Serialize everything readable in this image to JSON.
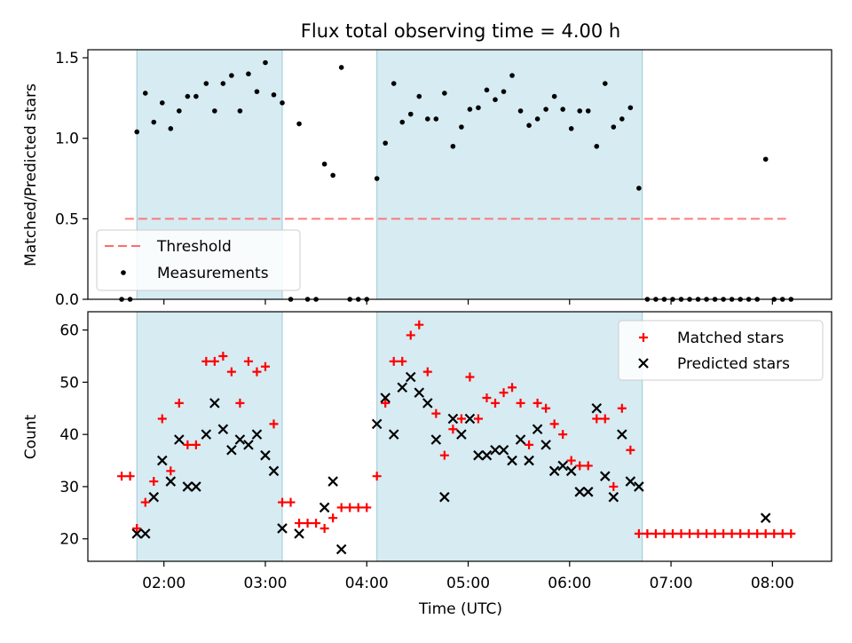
{
  "chart_data": [
    {
      "type": "scatter",
      "title": "Flux total observing time = 4.00 h",
      "xlabel": "",
      "ylabel": "Matched/Predicted stars",
      "xlim": [
        "01:15",
        "08:35"
      ],
      "ylim": [
        0,
        1.55
      ],
      "yticks": [
        "0.0",
        "0.5",
        "1.0",
        "1.5"
      ],
      "shaded_spans": [
        [
          "01:44",
          "03:10"
        ],
        [
          "04:06",
          "06:43"
        ]
      ],
      "threshold": {
        "name": "Threshold",
        "value": 0.5,
        "x": [
          "01:37",
          "08:08"
        ],
        "color": "#ff6b6b"
      },
      "series": [
        {
          "name": "Measurements",
          "marker": "dot",
          "color": "#000000",
          "points": [
            [
              "01:35",
              0.0
            ],
            [
              "01:40",
              0.0
            ],
            [
              "01:44",
              1.04
            ],
            [
              "01:49",
              1.28
            ],
            [
              "01:54",
              1.1
            ],
            [
              "01:59",
              1.22
            ],
            [
              "02:04",
              1.06
            ],
            [
              "02:09",
              1.17
            ],
            [
              "02:14",
              1.26
            ],
            [
              "02:19",
              1.26
            ],
            [
              "02:25",
              1.34
            ],
            [
              "02:30",
              1.17
            ],
            [
              "02:35",
              1.34
            ],
            [
              "02:40",
              1.39
            ],
            [
              "02:45",
              1.17
            ],
            [
              "02:50",
              1.4
            ],
            [
              "02:55",
              1.29
            ],
            [
              "03:00",
              1.47
            ],
            [
              "03:05",
              1.27
            ],
            [
              "03:10",
              1.22
            ],
            [
              "03:15",
              0.0
            ],
            [
              "03:20",
              1.09
            ],
            [
              "03:25",
              0.0
            ],
            [
              "03:30",
              0.0
            ],
            [
              "03:35",
              0.84
            ],
            [
              "03:40",
              0.77
            ],
            [
              "03:45",
              1.44
            ],
            [
              "03:50",
              0.0
            ],
            [
              "03:55",
              0.0
            ],
            [
              "04:00",
              0.0
            ],
            [
              "04:06",
              0.75
            ],
            [
              "04:11",
              0.97
            ],
            [
              "04:16",
              1.34
            ],
            [
              "04:21",
              1.1
            ],
            [
              "04:26",
              1.15
            ],
            [
              "04:31",
              1.26
            ],
            [
              "04:36",
              1.12
            ],
            [
              "04:41",
              1.12
            ],
            [
              "04:46",
              1.28
            ],
            [
              "04:51",
              0.95
            ],
            [
              "04:56",
              1.07
            ],
            [
              "05:01",
              1.18
            ],
            [
              "05:06",
              1.19
            ],
            [
              "05:11",
              1.3
            ],
            [
              "05:16",
              1.24
            ],
            [
              "05:21",
              1.29
            ],
            [
              "05:26",
              1.39
            ],
            [
              "05:31",
              1.17
            ],
            [
              "05:36",
              1.08
            ],
            [
              "05:41",
              1.12
            ],
            [
              "05:46",
              1.18
            ],
            [
              "05:51",
              1.26
            ],
            [
              "05:56",
              1.18
            ],
            [
              "06:01",
              1.06
            ],
            [
              "06:06",
              1.17
            ],
            [
              "06:11",
              1.17
            ],
            [
              "06:16",
              0.95
            ],
            [
              "06:21",
              1.34
            ],
            [
              "06:26",
              1.07
            ],
            [
              "06:31",
              1.12
            ],
            [
              "06:36",
              1.19
            ],
            [
              "06:41",
              0.69
            ],
            [
              "06:46",
              0.0
            ],
            [
              "06:51",
              0.0
            ],
            [
              "06:56",
              0.0
            ],
            [
              "07:01",
              0.0
            ],
            [
              "07:06",
              0.0
            ],
            [
              "07:11",
              0.0
            ],
            [
              "07:16",
              0.0
            ],
            [
              "07:21",
              0.0
            ],
            [
              "07:26",
              0.0
            ],
            [
              "07:31",
              0.0
            ],
            [
              "07:36",
              0.0
            ],
            [
              "07:41",
              0.0
            ],
            [
              "07:46",
              0.0
            ],
            [
              "07:51",
              0.0
            ],
            [
              "07:56",
              0.87
            ],
            [
              "08:01",
              0.0
            ],
            [
              "08:06",
              0.0
            ],
            [
              "08:11",
              0.0
            ]
          ]
        }
      ],
      "legend": {
        "position": "lower-left"
      }
    },
    {
      "type": "scatter",
      "title": "",
      "xlabel": "Time (UTC)",
      "ylabel": "Count",
      "xlim": [
        "01:15",
        "08:35"
      ],
      "ylim": [
        15.7,
        63.5
      ],
      "yticks": [
        "20",
        "30",
        "40",
        "50",
        "60"
      ],
      "xticks": [
        "02:00",
        "03:00",
        "04:00",
        "05:00",
        "06:00",
        "07:00",
        "08:00"
      ],
      "shaded_spans": [
        [
          "01:44",
          "03:10"
        ],
        [
          "04:06",
          "06:43"
        ]
      ],
      "series": [
        {
          "name": "Matched stars",
          "marker": "plus",
          "color": "#ff0000",
          "points": [
            [
              "01:35",
              32
            ],
            [
              "01:40",
              32
            ],
            [
              "01:44",
              22
            ],
            [
              "01:49",
              27
            ],
            [
              "01:54",
              31
            ],
            [
              "01:59",
              43
            ],
            [
              "02:04",
              33
            ],
            [
              "02:09",
              46
            ],
            [
              "02:14",
              38
            ],
            [
              "02:19",
              38
            ],
            [
              "02:25",
              54
            ],
            [
              "02:30",
              54
            ],
            [
              "02:35",
              55
            ],
            [
              "02:40",
              52
            ],
            [
              "02:45",
              46
            ],
            [
              "02:50",
              54
            ],
            [
              "02:55",
              52
            ],
            [
              "03:00",
              53
            ],
            [
              "03:05",
              42
            ],
            [
              "03:10",
              27
            ],
            [
              "03:15",
              27
            ],
            [
              "03:20",
              23
            ],
            [
              "03:25",
              23
            ],
            [
              "03:30",
              23
            ],
            [
              "03:35",
              22
            ],
            [
              "03:40",
              24
            ],
            [
              "03:45",
              26
            ],
            [
              "03:50",
              26
            ],
            [
              "03:55",
              26
            ],
            [
              "04:00",
              26
            ],
            [
              "04:06",
              32
            ],
            [
              "04:11",
              46
            ],
            [
              "04:16",
              54
            ],
            [
              "04:21",
              54
            ],
            [
              "04:26",
              59
            ],
            [
              "04:31",
              61
            ],
            [
              "04:36",
              52
            ],
            [
              "04:41",
              44
            ],
            [
              "04:46",
              36
            ],
            [
              "04:51",
              41
            ],
            [
              "04:56",
              43
            ],
            [
              "05:01",
              51
            ],
            [
              "05:06",
              43
            ],
            [
              "05:11",
              47
            ],
            [
              "05:16",
              46
            ],
            [
              "05:21",
              48
            ],
            [
              "05:26",
              49
            ],
            [
              "05:31",
              46
            ],
            [
              "05:36",
              38
            ],
            [
              "05:41",
              46
            ],
            [
              "05:46",
              45
            ],
            [
              "05:51",
              42
            ],
            [
              "05:56",
              40
            ],
            [
              "06:01",
              35
            ],
            [
              "06:06",
              34
            ],
            [
              "06:11",
              34
            ],
            [
              "06:16",
              43
            ],
            [
              "06:21",
              43
            ],
            [
              "06:26",
              30
            ],
            [
              "06:31",
              45
            ],
            [
              "06:36",
              37
            ],
            [
              "06:41",
              21
            ],
            [
              "06:46",
              21
            ],
            [
              "06:51",
              21
            ],
            [
              "06:56",
              21
            ],
            [
              "07:01",
              21
            ],
            [
              "07:06",
              21
            ],
            [
              "07:11",
              21
            ],
            [
              "07:16",
              21
            ],
            [
              "07:21",
              21
            ],
            [
              "07:26",
              21
            ],
            [
              "07:31",
              21
            ],
            [
              "07:36",
              21
            ],
            [
              "07:41",
              21
            ],
            [
              "07:46",
              21
            ],
            [
              "07:51",
              21
            ],
            [
              "07:56",
              21
            ],
            [
              "08:01",
              21
            ],
            [
              "08:06",
              21
            ],
            [
              "08:11",
              21
            ]
          ]
        },
        {
          "name": "Predicted stars",
          "marker": "x",
          "color": "#000000",
          "points": [
            [
              "01:44",
              21
            ],
            [
              "01:49",
              21
            ],
            [
              "01:54",
              28
            ],
            [
              "01:59",
              35
            ],
            [
              "02:04",
              31
            ],
            [
              "02:09",
              39
            ],
            [
              "02:14",
              30
            ],
            [
              "02:19",
              30
            ],
            [
              "02:25",
              40
            ],
            [
              "02:30",
              46
            ],
            [
              "02:35",
              41
            ],
            [
              "02:40",
              37
            ],
            [
              "02:45",
              39
            ],
            [
              "02:50",
              38
            ],
            [
              "02:55",
              40
            ],
            [
              "03:00",
              36
            ],
            [
              "03:05",
              33
            ],
            [
              "03:10",
              22
            ],
            [
              "03:20",
              21
            ],
            [
              "03:35",
              26
            ],
            [
              "03:40",
              31
            ],
            [
              "03:45",
              18
            ],
            [
              "04:06",
              42
            ],
            [
              "04:11",
              47
            ],
            [
              "04:16",
              40
            ],
            [
              "04:21",
              49
            ],
            [
              "04:26",
              51
            ],
            [
              "04:31",
              48
            ],
            [
              "04:36",
              46
            ],
            [
              "04:41",
              39
            ],
            [
              "04:46",
              28
            ],
            [
              "04:51",
              43
            ],
            [
              "04:56",
              40
            ],
            [
              "05:01",
              43
            ],
            [
              "05:06",
              36
            ],
            [
              "05:11",
              36
            ],
            [
              "05:16",
              37
            ],
            [
              "05:21",
              37
            ],
            [
              "05:26",
              35
            ],
            [
              "05:31",
              39
            ],
            [
              "05:36",
              35
            ],
            [
              "05:41",
              41
            ],
            [
              "05:46",
              38
            ],
            [
              "05:51",
              33
            ],
            [
              "05:56",
              34
            ],
            [
              "06:01",
              33
            ],
            [
              "06:06",
              29
            ],
            [
              "06:11",
              29
            ],
            [
              "06:16",
              45
            ],
            [
              "06:21",
              32
            ],
            [
              "06:26",
              28
            ],
            [
              "06:31",
              40
            ],
            [
              "06:36",
              31
            ],
            [
              "06:41",
              30
            ],
            [
              "07:56",
              24
            ]
          ]
        }
      ],
      "legend": {
        "position": "top-right"
      }
    }
  ]
}
